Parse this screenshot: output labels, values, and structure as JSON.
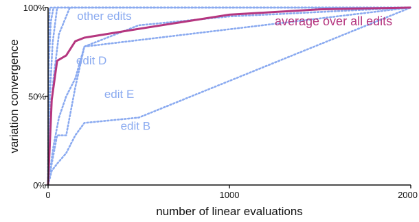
{
  "chart_data": {
    "type": "line",
    "xlabel": "number of linear evaluations",
    "ylabel": "variation convergence",
    "xlim": [
      0,
      2000
    ],
    "ylim": [
      0,
      100
    ],
    "x_ticks": [
      0,
      1000,
      2000
    ],
    "y_ticks": [
      0,
      50,
      100
    ],
    "x_tick_labels": [
      "0",
      "1000",
      "2000"
    ],
    "y_tick_labels": [
      "0%",
      "50%",
      "100%"
    ],
    "grid": false,
    "colors": {
      "edits": "#8aaaf0",
      "average": "#b5367f",
      "axis": "#111111"
    },
    "series": [
      {
        "style": "dotted",
        "x": [
          0,
          20,
          50,
          100,
          150,
          200,
          500,
          1000,
          2000
        ],
        "y": [
          0,
          12,
          28,
          28,
          55,
          78,
          90,
          95,
          100
        ]
      },
      {
        "style": "dotted",
        "x": [
          0,
          20,
          50,
          100,
          150,
          200,
          500,
          2000
        ],
        "y": [
          0,
          8,
          12,
          18,
          28,
          35,
          38,
          100
        ]
      },
      {
        "style": "dotted",
        "x": [
          0,
          30,
          60,
          100,
          150,
          200,
          2000
        ],
        "y": [
          0,
          22,
          38,
          50,
          60,
          78,
          100
        ]
      },
      {
        "style": "dotted",
        "x": [
          0,
          10,
          30,
          60,
          120,
          2000
        ],
        "y": [
          0,
          35,
          60,
          85,
          100,
          100
        ]
      },
      {
        "style": "dotted",
        "x": [
          0,
          10,
          25,
          50,
          2000
        ],
        "y": [
          0,
          50,
          80,
          100,
          100
        ]
      },
      {
        "style": "dotted",
        "x": [
          0,
          5,
          15,
          30,
          2000
        ],
        "y": [
          0,
          70,
          92,
          100,
          100
        ]
      },
      {
        "style": "dotted",
        "x": [
          0,
          5,
          10,
          2000
        ],
        "y": [
          0,
          90,
          100,
          100
        ]
      },
      {
        "style": "solid",
        "x": [
          0,
          20,
          50,
          100,
          150,
          200,
          500,
          1000,
          1500,
          2000
        ],
        "y": [
          0,
          48,
          70,
          73,
          81,
          83,
          88,
          96,
          99,
          100
        ]
      }
    ],
    "annotations": [
      {
        "text": "other edits",
        "at": [
          160,
          93
        ],
        "color": "edits"
      },
      {
        "text": "edit D",
        "at": [
          155,
          68
        ],
        "color": "edits"
      },
      {
        "text": "edit E",
        "at": [
          310,
          49
        ],
        "color": "edits"
      },
      {
        "text": "edit B",
        "at": [
          400,
          31
        ],
        "color": "edits"
      },
      {
        "text": "average over all edits",
        "at": [
          1250,
          90
        ],
        "color": "average"
      }
    ]
  }
}
